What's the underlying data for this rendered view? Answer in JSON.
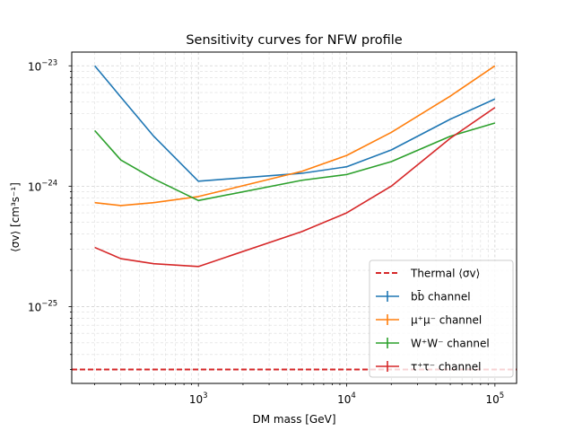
{
  "chart_data": {
    "type": "line",
    "title": "Sensitivity curves for NFW profile",
    "xlabel": "DM mass [GeV]",
    "ylabel": "⟨σv⟩ [cm³s⁻¹]",
    "xscale": "log",
    "yscale": "log",
    "xlim": [
      140,
      140000
    ],
    "ylim": [
      2.3e-26,
      1.3e-23
    ],
    "grid": true,
    "legend_position": "lower right",
    "x_ticks": [
      {
        "value": 1000,
        "base": "10",
        "exp": "3"
      },
      {
        "value": 10000,
        "base": "10",
        "exp": "4"
      },
      {
        "value": 100000,
        "base": "10",
        "exp": "5"
      }
    ],
    "y_ticks": [
      {
        "value": 1e-25,
        "base": "10",
        "exp": "−25"
      },
      {
        "value": 1e-24,
        "base": "10",
        "exp": "−24"
      },
      {
        "value": 1e-23,
        "base": "10",
        "exp": "−23"
      }
    ],
    "thermal": {
      "name": "Thermal ⟨σv⟩",
      "value": 3e-26,
      "color": "#d62728"
    },
    "series": [
      {
        "name": "bb̄ channel",
        "color": "#1f77b4",
        "x": [
          200,
          300,
          500,
          1000,
          5000,
          10000,
          20000,
          50000,
          100000
        ],
        "y": [
          1e-23,
          5.5e-24,
          2.6e-24,
          1.1e-24,
          1.28e-24,
          1.45e-24,
          2e-24,
          3.6e-24,
          5.3e-24
        ]
      },
      {
        "name": "μ⁺μ⁻ channel",
        "color": "#ff7f0e",
        "x": [
          200,
          300,
          500,
          1000,
          5000,
          10000,
          20000,
          50000,
          100000
        ],
        "y": [
          7.3e-25,
          6.9e-25,
          7.3e-25,
          8.2e-25,
          1.33e-24,
          1.8e-24,
          2.8e-24,
          5.6e-24,
          1e-23
        ]
      },
      {
        "name": "W⁺W⁻ channel",
        "color": "#2ca02c",
        "x": [
          200,
          300,
          500,
          1000,
          5000,
          10000,
          20000,
          50000,
          100000
        ],
        "y": [
          2.9e-24,
          1.65e-24,
          1.15e-24,
          7.6e-25,
          1.12e-24,
          1.25e-24,
          1.6e-24,
          2.6e-24,
          3.35e-24
        ]
      },
      {
        "name": "τ⁺τ⁻ channel",
        "color": "#d62728",
        "x": [
          200,
          300,
          500,
          1000,
          5000,
          10000,
          20000,
          50000,
          100000
        ],
        "y": [
          3.1e-25,
          2.5e-25,
          2.27e-25,
          2.15e-25,
          4.2e-25,
          6e-25,
          1e-24,
          2.5e-24,
          4.5e-24
        ]
      }
    ]
  }
}
